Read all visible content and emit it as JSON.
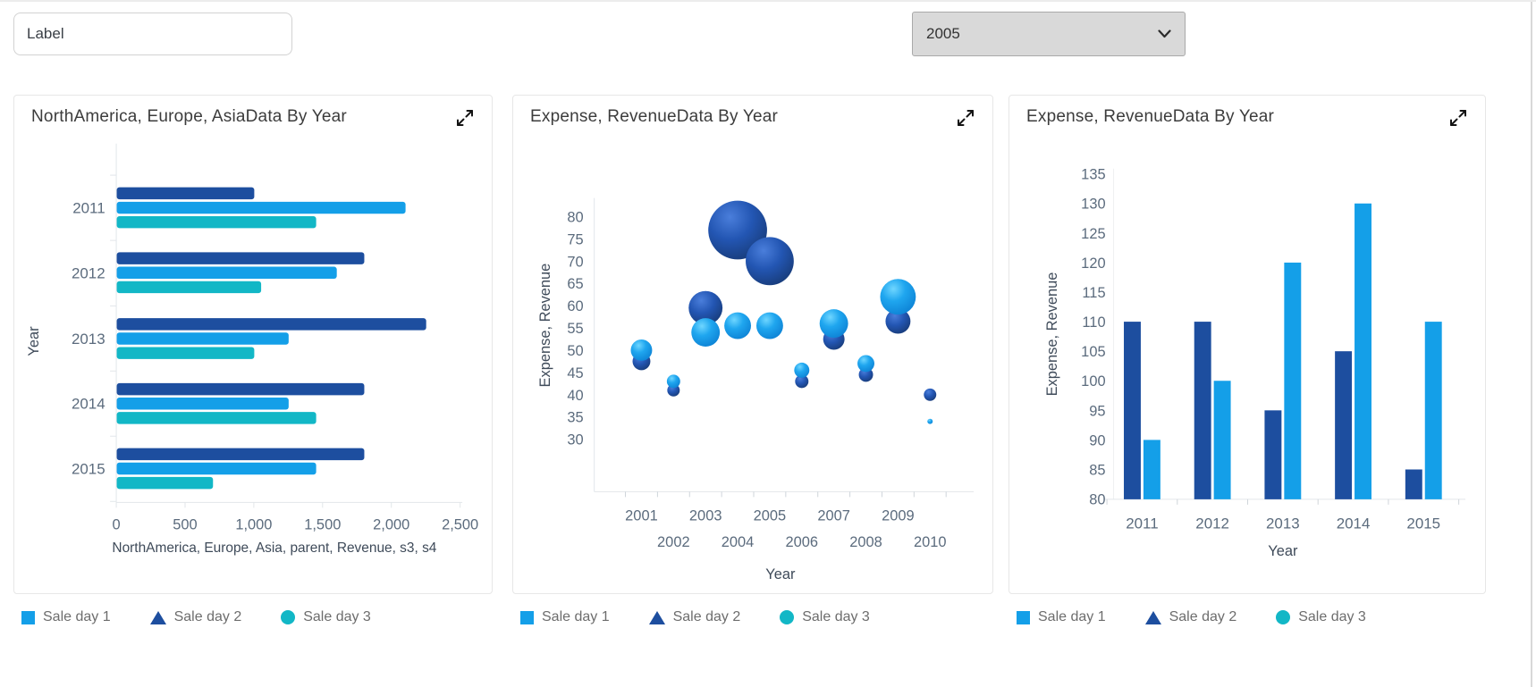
{
  "toolbar": {
    "label_input": {
      "value": "Label"
    },
    "year_select": {
      "value": "2005"
    }
  },
  "colors": {
    "azure": "#149fe8",
    "navy": "#1d4e9f",
    "teal": "#12b7c6"
  },
  "legend": {
    "items": [
      {
        "label": "Sale day 1",
        "shape": "square",
        "color": "#149fe8"
      },
      {
        "label": "Sale day 2",
        "shape": "triangle",
        "color": "#1d4e9f"
      },
      {
        "label": "Sale day 3",
        "shape": "circle",
        "color": "#12b7c6"
      }
    ]
  },
  "cards": [
    {
      "title": "NorthAmerica, Europe, AsiaData By Year",
      "expand_icon": "expand-diagonal-arrows"
    },
    {
      "title": "Expense, RevenueData By Year",
      "expand_icon": "expand-diagonal-arrows"
    },
    {
      "title": "Expense, RevenueData By Year",
      "expand_icon": "expand-diagonal-arrows"
    }
  ],
  "chart_data": [
    {
      "type": "bar",
      "orientation": "horizontal",
      "title": "NorthAmerica, Europe, AsiaData By Year",
      "categories": [
        "2011",
        "2012",
        "2013",
        "2014",
        "2015"
      ],
      "series": [
        {
          "name": "Sale day 2",
          "color": "#1d4e9f",
          "values": [
            1000,
            1800,
            2250,
            1800,
            1800
          ]
        },
        {
          "name": "Sale day 1",
          "color": "#149fe8",
          "values": [
            2100,
            1600,
            1250,
            1250,
            1450
          ]
        },
        {
          "name": "Sale day 3",
          "color": "#12b7c6",
          "values": [
            1450,
            1050,
            1000,
            1450,
            700
          ]
        }
      ],
      "xlabel": "NorthAmerica, Europe, Asia, parent, Revenue, s3, s4",
      "ylabel": "Year",
      "xlim": [
        0,
        2500
      ],
      "xticks": [
        "0",
        "500",
        "1,000",
        "1,500",
        "2,000",
        "2,500"
      ],
      "grid": false,
      "legend_position": "bottom-external"
    },
    {
      "type": "bubble",
      "title": "Expense, RevenueData By Year",
      "xlabel": "Year",
      "ylabel": "Expense, Revenue",
      "xlim": [
        2000.5,
        2010.5
      ],
      "ylim": [
        30,
        80
      ],
      "yticks": [
        80,
        75,
        70,
        65,
        60,
        55,
        50,
        45,
        40,
        35,
        30
      ],
      "xticks": [
        2001,
        2002,
        2003,
        2004,
        2005,
        2006,
        2007,
        2008,
        2009,
        2010
      ],
      "series": [
        {
          "name": "Sale day 2",
          "color": "#1d4e9f",
          "points": [
            {
              "x": 2001,
              "y": 47.5,
              "r": 10
            },
            {
              "x": 2002,
              "y": 41,
              "r": 7
            },
            {
              "x": 2003,
              "y": 59.5,
              "r": 19
            },
            {
              "x": 2004,
              "y": 77,
              "r": 33
            },
            {
              "x": 2005,
              "y": 70,
              "r": 27
            },
            {
              "x": 2006,
              "y": 43,
              "r": 7.5
            },
            {
              "x": 2007,
              "y": 52.5,
              "r": 12
            },
            {
              "x": 2008,
              "y": 44.5,
              "r": 8
            },
            {
              "x": 2009,
              "y": 56.5,
              "r": 14
            },
            {
              "x": 2010,
              "y": 40,
              "r": 7
            }
          ]
        },
        {
          "name": "Sale day 1",
          "color": "#149fe8",
          "points": [
            {
              "x": 2001,
              "y": 50,
              "r": 12
            },
            {
              "x": 2002,
              "y": 43,
              "r": 7.5
            },
            {
              "x": 2003,
              "y": 54,
              "r": 16
            },
            {
              "x": 2004,
              "y": 55.5,
              "r": 15
            },
            {
              "x": 2005,
              "y": 55.5,
              "r": 15
            },
            {
              "x": 2006,
              "y": 45.5,
              "r": 8.5
            },
            {
              "x": 2007,
              "y": 56,
              "r": 16
            },
            {
              "x": 2008,
              "y": 47,
              "r": 9.5
            },
            {
              "x": 2009,
              "y": 62,
              "r": 20
            },
            {
              "x": 2010,
              "y": 34,
              "r": 3
            }
          ]
        }
      ],
      "grid": false,
      "legend_position": "bottom-external"
    },
    {
      "type": "bar",
      "orientation": "vertical",
      "title": "Expense, RevenueData By Year",
      "categories": [
        "2011",
        "2012",
        "2013",
        "2014",
        "2015"
      ],
      "series": [
        {
          "name": "Sale day 2",
          "color": "#1d4e9f",
          "values": [
            110,
            110,
            95,
            105,
            85
          ]
        },
        {
          "name": "Sale day 1",
          "color": "#149fe8",
          "values": [
            90,
            100,
            120,
            130,
            110
          ]
        }
      ],
      "xlabel": "Year",
      "ylabel": "Expense, Revenue",
      "ylim": [
        80,
        135
      ],
      "yticks": [
        135,
        130,
        125,
        120,
        115,
        110,
        105,
        100,
        95,
        90,
        85,
        80
      ],
      "grid": false,
      "legend_position": "bottom-external"
    }
  ]
}
